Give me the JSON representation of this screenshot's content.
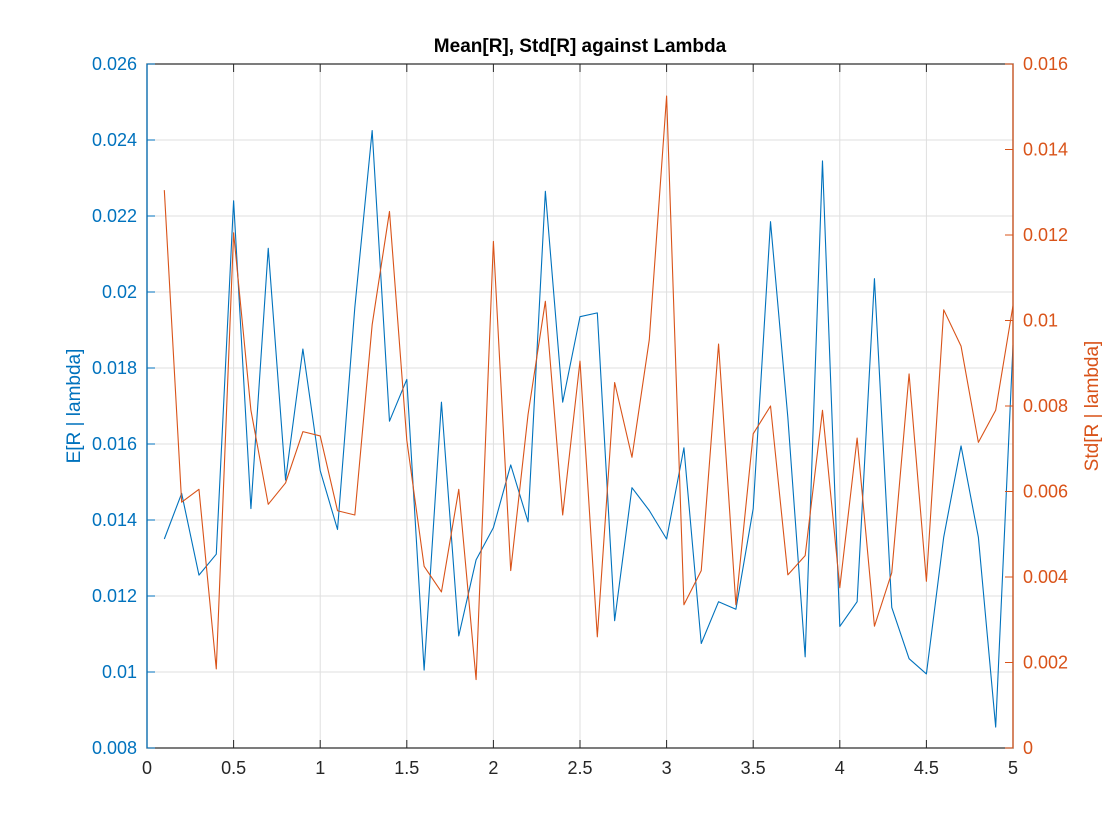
{
  "chart_data": {
    "type": "line",
    "title": "Mean[R], Std[R] against Lambda",
    "xlabel": "",
    "xlim": [
      0,
      5
    ],
    "x_ticks": [
      "0",
      "0.5",
      "1",
      "1.5",
      "2",
      "2.5",
      "3",
      "3.5",
      "4",
      "4.5",
      "5"
    ],
    "x_tick_values": [
      0,
      0.5,
      1,
      1.5,
      2,
      2.5,
      3,
      3.5,
      4,
      4.5,
      5
    ],
    "grid": true,
    "legend": "none",
    "y_left": {
      "label": "E[R | lambda]",
      "color": "#0072BD",
      "ylim": [
        0.008,
        0.026
      ],
      "ticks": [
        "0.008",
        "0.01",
        "0.012",
        "0.014",
        "0.016",
        "0.018",
        "0.02",
        "0.022",
        "0.024",
        "0.026"
      ],
      "tick_values": [
        0.008,
        0.01,
        0.012,
        0.014,
        0.016,
        0.018,
        0.02,
        0.022,
        0.024,
        0.026
      ]
    },
    "y_right": {
      "label": "Std[R | lambda]",
      "color": "#D95319",
      "ylim": [
        0,
        0.016
      ],
      "ticks": [
        "0",
        "0.002",
        "0.004",
        "0.006",
        "0.008",
        "0.01",
        "0.012",
        "0.014",
        "0.016"
      ],
      "tick_values": [
        0,
        0.002,
        0.004,
        0.006,
        0.008,
        0.01,
        0.012,
        0.014,
        0.016
      ]
    },
    "x": [
      0.1,
      0.2,
      0.3,
      0.4,
      0.5,
      0.6,
      0.7,
      0.8,
      0.9,
      1.0,
      1.1,
      1.2,
      1.3,
      1.4,
      1.5,
      1.6,
      1.7,
      1.8,
      1.9,
      2.0,
      2.1,
      2.2,
      2.3,
      2.4,
      2.5,
      2.6,
      2.7,
      2.8,
      2.9,
      3.0,
      3.1,
      3.2,
      3.3,
      3.4,
      3.5,
      3.6,
      3.7,
      3.8,
      3.9,
      4.0,
      4.1,
      4.2,
      4.3,
      4.4,
      4.5,
      4.6,
      4.7,
      4.8,
      4.9,
      5.0
    ],
    "series": [
      {
        "axis": "left",
        "color": "#0072BD",
        "values": [
          0.0135,
          0.0147,
          0.01255,
          0.0131,
          0.0224,
          0.0143,
          0.02115,
          0.01505,
          0.0185,
          0.0153,
          0.01375,
          0.0196,
          0.02425,
          0.0166,
          0.0177,
          0.01005,
          0.0171,
          0.01095,
          0.01295,
          0.0138,
          0.01545,
          0.01395,
          0.02265,
          0.0171,
          0.01935,
          0.01945,
          0.01135,
          0.01485,
          0.01425,
          0.0135,
          0.0159,
          0.01075,
          0.01185,
          0.01165,
          0.0143,
          0.02185,
          0.0167,
          0.0104,
          0.02345,
          0.0112,
          0.01185,
          0.02035,
          0.0117,
          0.01035,
          0.00995,
          0.01355,
          0.01595,
          0.01355,
          0.00855,
          0.0186
        ]
      },
      {
        "axis": "right",
        "color": "#D95319",
        "values": [
          0.01305,
          0.00575,
          0.00605,
          0.00185,
          0.01205,
          0.0079,
          0.0057,
          0.0062,
          0.0074,
          0.0073,
          0.00555,
          0.00545,
          0.0099,
          0.01255,
          0.0072,
          0.00425,
          0.00365,
          0.00605,
          0.0016,
          0.01185,
          0.00415,
          0.0078,
          0.01045,
          0.00545,
          0.00905,
          0.0026,
          0.00855,
          0.0068,
          0.00955,
          0.01525,
          0.00335,
          0.00415,
          0.00945,
          0.00335,
          0.00735,
          0.008,
          0.00405,
          0.0045,
          0.0079,
          0.00375,
          0.00725,
          0.00285,
          0.0041,
          0.00875,
          0.0039,
          0.01025,
          0.0094,
          0.00715,
          0.0079,
          0.01035
        ]
      }
    ]
  }
}
